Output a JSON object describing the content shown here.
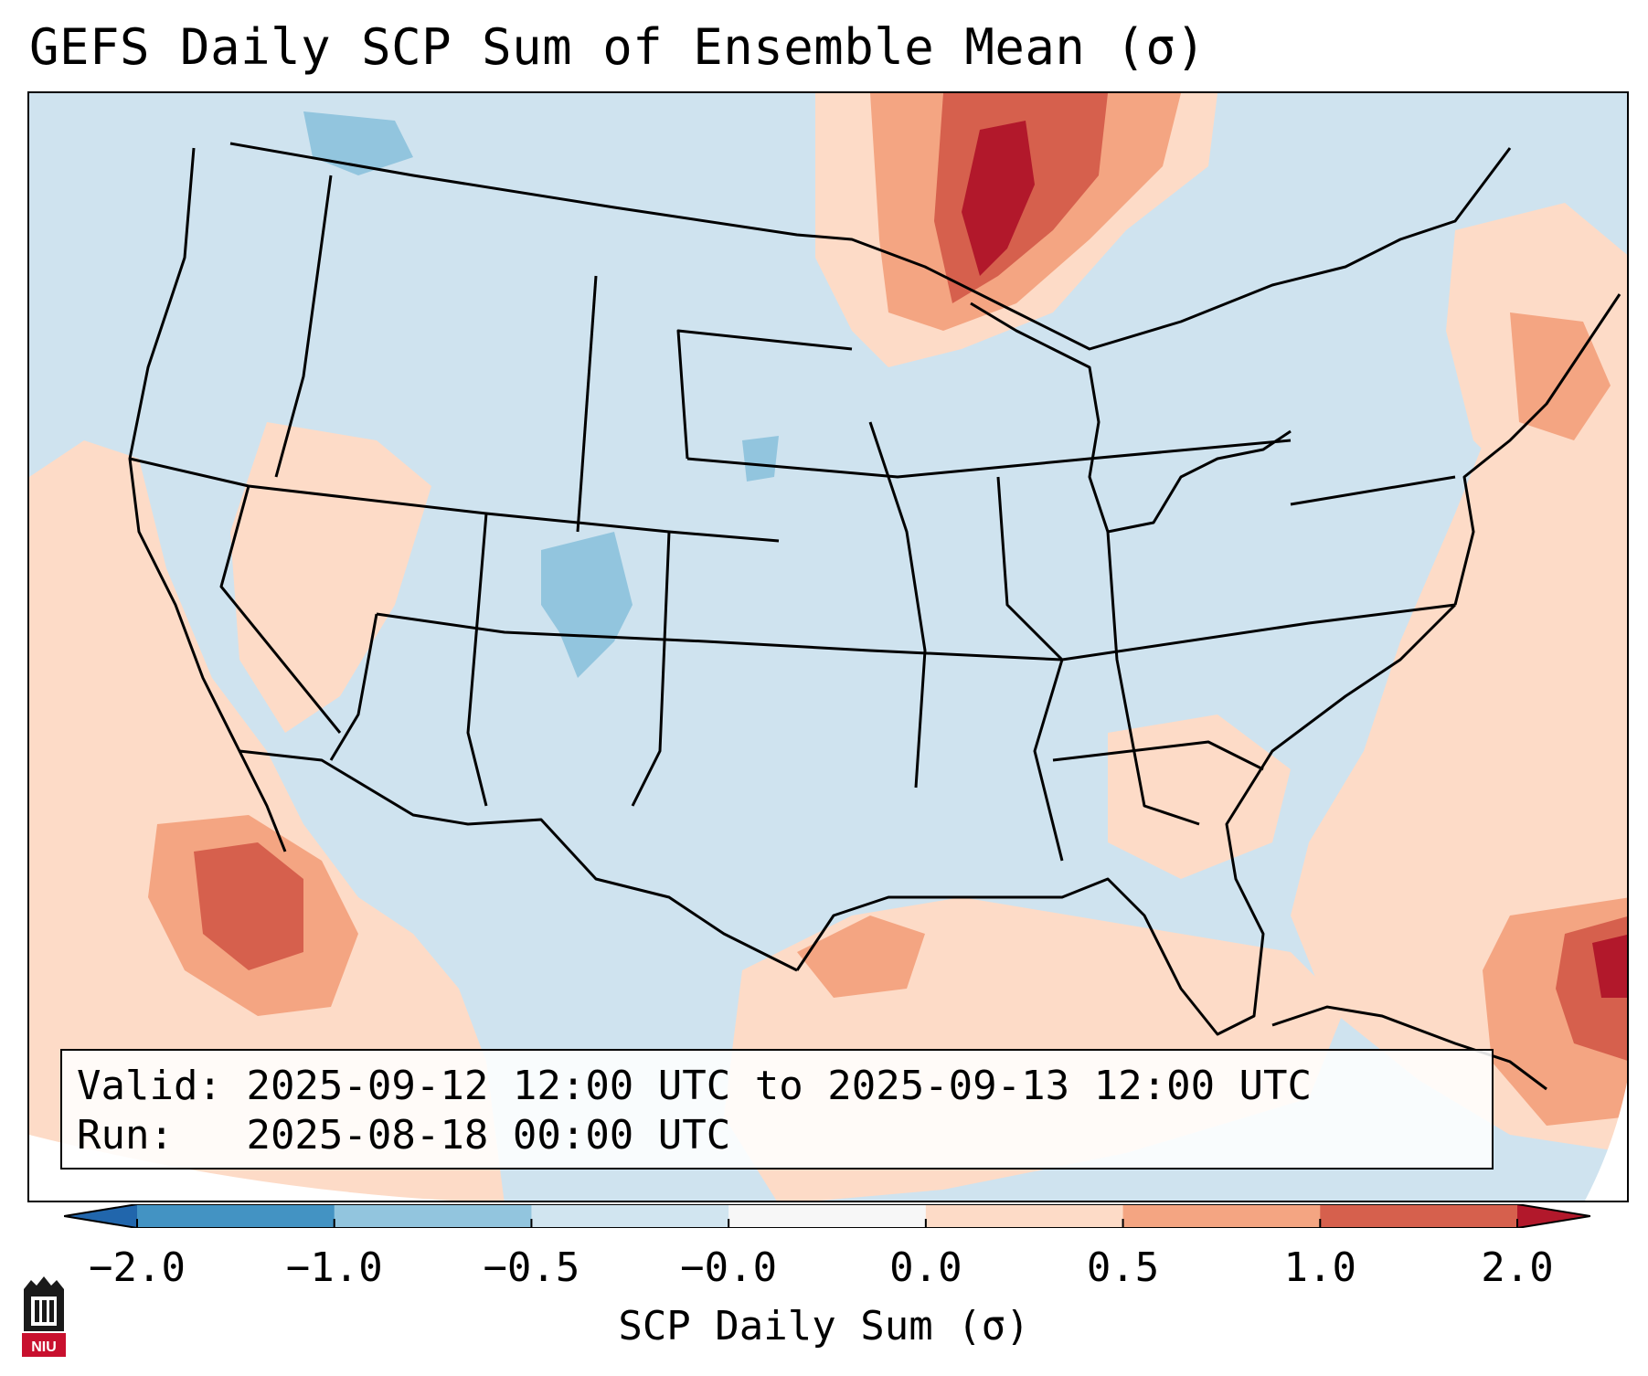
{
  "title": "GEFS Daily SCP Sum of Ensemble Mean (σ)",
  "info": {
    "valid_label": "Valid:",
    "valid_value": "2025-09-12 12:00 UTC to 2025-09-13 12:00 UTC",
    "run_label": "Run:",
    "run_value": "2025-08-18 00:00 UTC"
  },
  "colorbar": {
    "label": "SCP Daily Sum (σ)",
    "ticks": [
      "−2.0",
      "−1.0",
      "−0.5",
      "−0.0",
      "0.0",
      "0.5",
      "1.0",
      "2.0"
    ],
    "bins": [
      {
        "from": -2.0,
        "to": -1.0,
        "color": "#4393c3"
      },
      {
        "from": -1.0,
        "to": -0.5,
        "color": "#92c5de"
      },
      {
        "from": -0.5,
        "to": -0.0,
        "color": "#d1e5f0"
      },
      {
        "from": -0.0,
        "to": 0.0,
        "color": "#f7f7f7"
      },
      {
        "from": 0.0,
        "to": 0.5,
        "color": "#fddbc7"
      },
      {
        "from": 0.5,
        "to": 1.0,
        "color": "#f4a582"
      },
      {
        "from": 1.0,
        "to": 2.0,
        "color": "#d6604d"
      }
    ],
    "under_color": "#2166ac",
    "over_color": "#b2182b"
  },
  "colors": {
    "background": "#d1e5f0",
    "light_red": "#fddbc7",
    "mid_red": "#f4a582",
    "dark_red": "#d6604d",
    "deep_red": "#b2182b",
    "light_blue": "#92c5de",
    "logo_red": "#c8102e"
  },
  "logo": {
    "text": "NIU",
    "icon": "niu-logo-icon"
  }
}
